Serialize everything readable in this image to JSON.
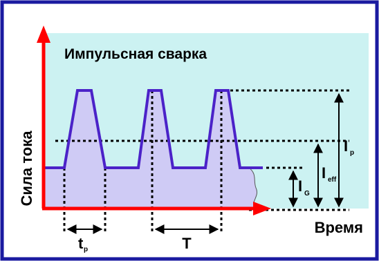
{
  "diagram": {
    "title": "Импульсная сварка",
    "y_axis_label": "Сила тока",
    "x_axis_label": "Время",
    "labels": {
      "ip_main": "I",
      "ip_sub": "p",
      "ieff_main": "I",
      "ieff_sub": "eff",
      "ig_main": "I",
      "ig_sub": "G",
      "tp_main": "t",
      "tp_sub": "p",
      "period": "T"
    }
  },
  "colors": {
    "frame_border": "#1a1aa0",
    "plot_background": "#ccf2f2",
    "axis": "#ff0000",
    "waveform": "#4b22c8",
    "waveform_fill": "#cfcbf5",
    "dotted_lines": "#000000"
  }
}
